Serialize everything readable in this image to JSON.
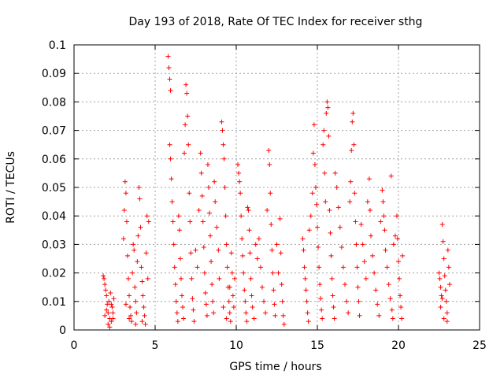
{
  "chart_data": {
    "type": "scatter",
    "title": "Day 193 of 2018, Rate Of TEC Index for receiver sthg",
    "xlabel": "GPS time / hours",
    "ylabel": "ROTI / TECUs",
    "xlim": [
      0,
      25
    ],
    "ylim": [
      0,
      0.1
    ],
    "x_ticks": [
      0,
      5,
      10,
      15,
      20,
      25
    ],
    "x_tick_labels": [
      "0",
      "5",
      "10",
      "15",
      "20",
      "25"
    ],
    "y_ticks": [
      0,
      0.01,
      0.02,
      0.03,
      0.04,
      0.05,
      0.06,
      0.07,
      0.08,
      0.09,
      0.1
    ],
    "y_tick_labels": [
      "0",
      "0.01",
      "0.02",
      "0.03",
      "0.04",
      "0.05",
      "0.06",
      "0.07",
      "0.08",
      "0.09",
      "0.1"
    ],
    "grid": true,
    "marker": "+",
    "marker_color": "#ff0000",
    "series": [
      {
        "name": "ROTI",
        "points": [
          [
            1.8,
            0.019
          ],
          [
            1.85,
            0.018
          ],
          [
            1.9,
            0.016
          ],
          [
            1.95,
            0.014
          ],
          [
            2.0,
            0.012
          ],
          [
            2.05,
            0.009
          ],
          [
            2.1,
            0.006
          ],
          [
            2.2,
            0.004
          ],
          [
            2.3,
            0.003
          ],
          [
            1.9,
            0.005
          ],
          [
            2.0,
            0.007
          ],
          [
            2.15,
            0.01
          ],
          [
            2.25,
            0.013
          ],
          [
            2.35,
            0.008
          ],
          [
            2.4,
            0.006
          ],
          [
            2.45,
            0.011
          ],
          [
            2.1,
            0.002
          ],
          [
            2.2,
            0.001
          ],
          [
            2.3,
            0.009
          ],
          [
            2.4,
            0.004
          ],
          [
            3.05,
            0.032
          ],
          [
            3.1,
            0.042
          ],
          [
            3.15,
            0.052
          ],
          [
            3.2,
            0.048
          ],
          [
            3.25,
            0.038
          ],
          [
            3.3,
            0.026
          ],
          [
            3.35,
            0.018
          ],
          [
            3.4,
            0.012
          ],
          [
            3.45,
            0.008
          ],
          [
            3.5,
            0.005
          ],
          [
            3.55,
            0.003
          ],
          [
            3.6,
            0.02
          ],
          [
            3.65,
            0.03
          ],
          [
            3.7,
            0.028
          ],
          [
            3.75,
            0.015
          ],
          [
            3.8,
            0.01
          ],
          [
            3.85,
            0.006
          ],
          [
            3.9,
            0.024
          ],
          [
            3.95,
            0.033
          ],
          [
            4.0,
            0.05
          ],
          [
            4.05,
            0.046
          ],
          [
            4.1,
            0.036
          ],
          [
            4.15,
            0.022
          ],
          [
            4.2,
            0.017
          ],
          [
            4.25,
            0.012
          ],
          [
            4.3,
            0.008
          ],
          [
            4.35,
            0.005
          ],
          [
            4.4,
            0.002
          ],
          [
            4.45,
            0.027
          ],
          [
            4.5,
            0.04
          ],
          [
            4.6,
            0.038
          ],
          [
            4.55,
            0.018
          ],
          [
            3.2,
            0.009
          ],
          [
            3.4,
            0.004
          ],
          [
            3.8,
            0.002
          ],
          [
            4.2,
            0.003
          ],
          [
            5.8,
            0.096
          ],
          [
            5.85,
            0.092
          ],
          [
            5.9,
            0.088
          ],
          [
            5.95,
            0.084
          ],
          [
            5.9,
            0.065
          ],
          [
            5.95,
            0.06
          ],
          [
            6.0,
            0.053
          ],
          [
            6.05,
            0.045
          ],
          [
            6.1,
            0.038
          ],
          [
            6.15,
            0.03
          ],
          [
            6.2,
            0.022
          ],
          [
            6.25,
            0.016
          ],
          [
            6.3,
            0.01
          ],
          [
            6.35,
            0.006
          ],
          [
            6.4,
            0.003
          ],
          [
            6.45,
            0.04
          ],
          [
            6.5,
            0.035
          ],
          [
            6.55,
            0.025
          ],
          [
            6.6,
            0.018
          ],
          [
            6.65,
            0.012
          ],
          [
            6.7,
            0.008
          ],
          [
            6.75,
            0.004
          ],
          [
            6.8,
            0.062
          ],
          [
            6.85,
            0.072
          ],
          [
            6.9,
            0.086
          ],
          [
            6.95,
            0.083
          ],
          [
            7.0,
            0.075
          ],
          [
            7.05,
            0.065
          ],
          [
            7.1,
            0.048
          ],
          [
            7.15,
            0.038
          ],
          [
            7.2,
            0.027
          ],
          [
            7.25,
            0.018
          ],
          [
            7.3,
            0.011
          ],
          [
            7.35,
            0.007
          ],
          [
            7.4,
            0.003
          ],
          [
            7.5,
            0.028
          ],
          [
            7.6,
            0.022
          ],
          [
            7.7,
            0.042
          ],
          [
            7.8,
            0.062
          ],
          [
            7.85,
            0.055
          ],
          [
            7.9,
            0.047
          ],
          [
            7.95,
            0.038
          ],
          [
            8.0,
            0.029
          ],
          [
            8.05,
            0.02
          ],
          [
            8.1,
            0.013
          ],
          [
            8.15,
            0.009
          ],
          [
            8.2,
            0.005
          ],
          [
            8.25,
            0.058
          ],
          [
            8.3,
            0.05
          ],
          [
            8.35,
            0.041
          ],
          [
            8.4,
            0.033
          ],
          [
            8.45,
            0.024
          ],
          [
            8.5,
            0.016
          ],
          [
            8.55,
            0.01
          ],
          [
            8.6,
            0.006
          ],
          [
            8.65,
            0.052
          ],
          [
            8.7,
            0.045
          ],
          [
            8.8,
            0.036
          ],
          [
            8.9,
            0.028
          ],
          [
            8.95,
            0.018
          ],
          [
            9.1,
            0.073
          ],
          [
            9.15,
            0.07
          ],
          [
            9.2,
            0.065
          ],
          [
            9.25,
            0.06
          ],
          [
            9.3,
            0.05
          ],
          [
            9.35,
            0.04
          ],
          [
            9.4,
            0.03
          ],
          [
            9.45,
            0.022
          ],
          [
            9.5,
            0.015
          ],
          [
            9.55,
            0.01
          ],
          [
            9.6,
            0.006
          ],
          [
            9.65,
            0.003
          ],
          [
            9.7,
            0.027
          ],
          [
            9.75,
            0.02
          ],
          [
            9.8,
            0.012
          ],
          [
            9.85,
            0.008
          ],
          [
            9.9,
            0.018
          ],
          [
            9.2,
            0.008
          ],
          [
            9.4,
            0.004
          ],
          [
            9.6,
            0.015
          ],
          [
            10.1,
            0.058
          ],
          [
            10.15,
            0.055
          ],
          [
            10.2,
            0.052
          ],
          [
            10.25,
            0.048
          ],
          [
            10.3,
            0.04
          ],
          [
            10.35,
            0.032
          ],
          [
            10.4,
            0.026
          ],
          [
            10.45,
            0.02
          ],
          [
            10.5,
            0.014
          ],
          [
            10.55,
            0.01
          ],
          [
            10.6,
            0.006
          ],
          [
            10.65,
            0.003
          ],
          [
            10.7,
            0.043
          ],
          [
            10.75,
            0.042
          ],
          [
            10.8,
            0.035
          ],
          [
            10.85,
            0.027
          ],
          [
            10.9,
            0.018
          ],
          [
            10.95,
            0.012
          ],
          [
            11.0,
            0.008
          ],
          [
            11.1,
            0.004
          ],
          [
            11.2,
            0.03
          ],
          [
            11.3,
            0.025
          ],
          [
            11.4,
            0.032
          ],
          [
            11.5,
            0.022
          ],
          [
            11.6,
            0.015
          ],
          [
            11.7,
            0.01
          ],
          [
            11.8,
            0.006
          ],
          [
            11.9,
            0.042
          ],
          [
            12.0,
            0.063
          ],
          [
            12.05,
            0.058
          ],
          [
            12.1,
            0.048
          ],
          [
            12.15,
            0.037
          ],
          [
            12.2,
            0.028
          ],
          [
            12.25,
            0.02
          ],
          [
            12.3,
            0.014
          ],
          [
            12.35,
            0.009
          ],
          [
            12.4,
            0.005
          ],
          [
            12.5,
            0.03
          ],
          [
            12.6,
            0.02
          ],
          [
            12.7,
            0.039
          ],
          [
            12.75,
            0.027
          ],
          [
            12.8,
            0.016
          ],
          [
            12.85,
            0.01
          ],
          [
            12.9,
            0.005
          ],
          [
            12.95,
            0.002
          ],
          [
            14.1,
            0.032
          ],
          [
            14.15,
            0.028
          ],
          [
            14.2,
            0.022
          ],
          [
            14.25,
            0.018
          ],
          [
            14.3,
            0.014
          ],
          [
            14.35,
            0.01
          ],
          [
            14.4,
            0.006
          ],
          [
            14.45,
            0.003
          ],
          [
            14.5,
            0.035
          ],
          [
            14.6,
            0.04
          ],
          [
            14.7,
            0.048
          ],
          [
            14.75,
            0.062
          ],
          [
            14.8,
            0.072
          ],
          [
            14.85,
            0.058
          ],
          [
            14.9,
            0.05
          ],
          [
            14.95,
            0.044
          ],
          [
            15.0,
            0.036
          ],
          [
            15.05,
            0.029
          ],
          [
            15.1,
            0.022
          ],
          [
            15.15,
            0.016
          ],
          [
            15.2,
            0.011
          ],
          [
            15.25,
            0.007
          ],
          [
            15.3,
            0.004
          ],
          [
            15.35,
            0.065
          ],
          [
            15.4,
            0.07
          ],
          [
            15.45,
            0.055
          ],
          [
            15.5,
            0.045
          ],
          [
            15.55,
            0.076
          ],
          [
            15.6,
            0.08
          ],
          [
            15.65,
            0.078
          ],
          [
            15.7,
            0.068
          ],
          [
            15.75,
            0.042
          ],
          [
            15.8,
            0.034
          ],
          [
            15.85,
            0.026
          ],
          [
            15.9,
            0.018
          ],
          [
            15.95,
            0.012
          ],
          [
            16.0,
            0.008
          ],
          [
            16.05,
            0.004
          ],
          [
            16.1,
            0.055
          ],
          [
            16.2,
            0.05
          ],
          [
            16.3,
            0.043
          ],
          [
            16.4,
            0.036
          ],
          [
            16.5,
            0.029
          ],
          [
            16.6,
            0.022
          ],
          [
            16.7,
            0.016
          ],
          [
            16.8,
            0.01
          ],
          [
            16.9,
            0.006
          ],
          [
            17.0,
            0.045
          ],
          [
            17.05,
            0.052
          ],
          [
            17.1,
            0.063
          ],
          [
            17.15,
            0.073
          ],
          [
            17.2,
            0.076
          ],
          [
            17.25,
            0.065
          ],
          [
            17.3,
            0.048
          ],
          [
            17.35,
            0.038
          ],
          [
            17.4,
            0.03
          ],
          [
            17.45,
            0.022
          ],
          [
            17.5,
            0.015
          ],
          [
            17.55,
            0.01
          ],
          [
            17.6,
            0.005
          ],
          [
            17.7,
            0.037
          ],
          [
            17.8,
            0.03
          ],
          [
            17.9,
            0.024
          ],
          [
            18.0,
            0.018
          ],
          [
            18.1,
            0.045
          ],
          [
            18.2,
            0.053
          ],
          [
            18.25,
            0.042
          ],
          [
            18.3,
            0.033
          ],
          [
            18.4,
            0.026
          ],
          [
            18.5,
            0.02
          ],
          [
            18.6,
            0.014
          ],
          [
            18.7,
            0.009
          ],
          [
            18.8,
            0.005
          ],
          [
            18.9,
            0.038
          ],
          [
            19.0,
            0.049
          ],
          [
            19.05,
            0.045
          ],
          [
            19.1,
            0.04
          ],
          [
            19.15,
            0.035
          ],
          [
            19.2,
            0.028
          ],
          [
            19.3,
            0.022
          ],
          [
            19.4,
            0.016
          ],
          [
            19.5,
            0.011
          ],
          [
            19.55,
            0.054
          ],
          [
            19.6,
            0.007
          ],
          [
            19.65,
            0.004
          ],
          [
            19.7,
            0.03
          ],
          [
            19.8,
            0.033
          ],
          [
            19.9,
            0.04
          ],
          [
            19.95,
            0.032
          ],
          [
            20.0,
            0.024
          ],
          [
            20.05,
            0.018
          ],
          [
            20.1,
            0.012
          ],
          [
            20.15,
            0.008
          ],
          [
            20.2,
            0.004
          ],
          [
            20.25,
            0.026
          ],
          [
            22.5,
            0.02
          ],
          [
            22.55,
            0.018
          ],
          [
            22.6,
            0.015
          ],
          [
            22.65,
            0.012
          ],
          [
            22.7,
            0.037
          ],
          [
            22.75,
            0.031
          ],
          [
            22.8,
            0.025
          ],
          [
            22.85,
            0.019
          ],
          [
            22.9,
            0.014
          ],
          [
            22.95,
            0.01
          ],
          [
            23.0,
            0.006
          ],
          [
            23.05,
            0.028
          ],
          [
            23.1,
            0.022
          ],
          [
            23.15,
            0.016
          ],
          [
            22.6,
            0.008
          ],
          [
            22.8,
            0.004
          ],
          [
            23.0,
            0.003
          ],
          [
            22.7,
            0.011
          ]
        ]
      }
    ]
  }
}
